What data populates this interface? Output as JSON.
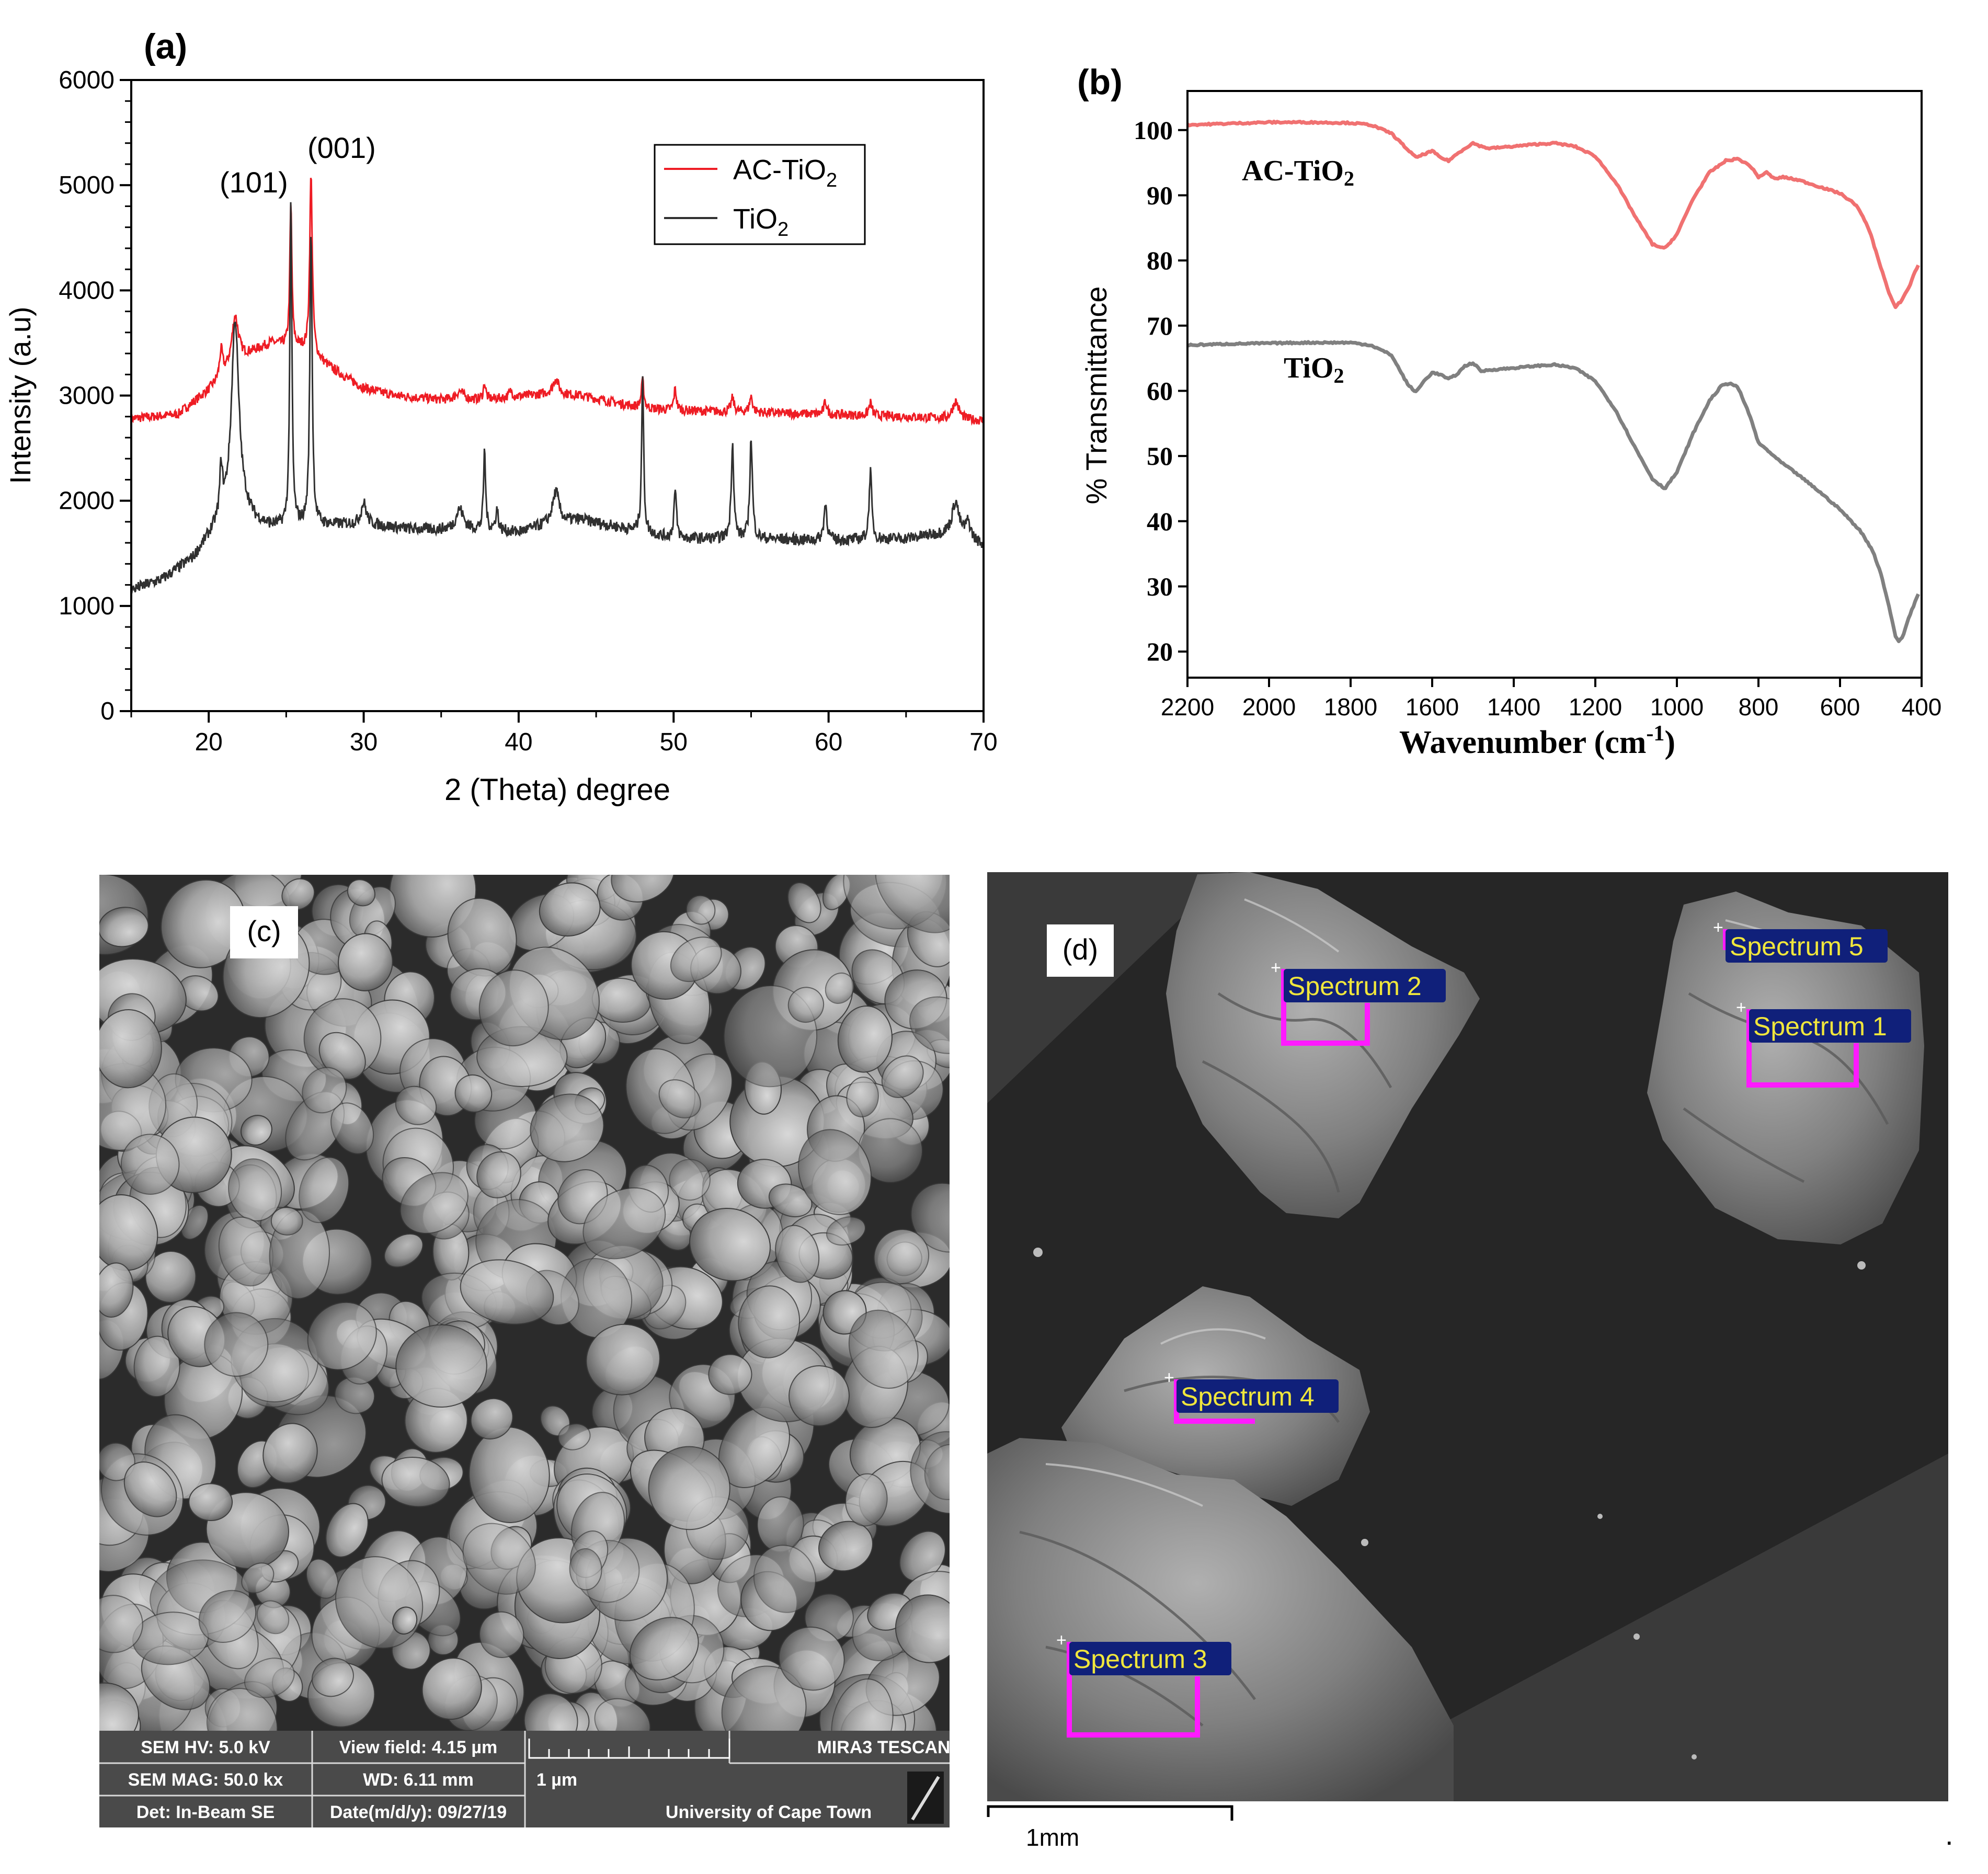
{
  "colors": {
    "ac_xrd": "#ee1c24",
    "tio2_xrd": "#303030",
    "ac_ftir": "#f07171",
    "tio2_ftir": "#808080",
    "spectrum_label_bg": "#10207a",
    "spectrum_label_text": "#f0e63c",
    "spectrum_box": "#ff1aff"
  },
  "panel_a": {
    "label": "(a)",
    "peak_labels": [
      "(101)",
      "(001)"
    ],
    "chart_data": {
      "type": "line",
      "title": "",
      "xlabel": "2 (Theta) degree",
      "ylabel": "Intensity (a.u)",
      "xlim": [
        15,
        70
      ],
      "ylim": [
        0,
        6000
      ],
      "xticks": [
        "20",
        "30",
        "40",
        "50",
        "60",
        "70"
      ],
      "yticks": [
        "0",
        "1000",
        "2000",
        "3000",
        "4000",
        "5000",
        "6000"
      ],
      "legend_position": "top-right",
      "legend": [
        {
          "text": "AC-TiO",
          "sub": "2"
        },
        {
          "text": "TiO",
          "sub": "2"
        }
      ],
      "series": [
        {
          "name": "AC-TiO2",
          "baseline": [
            [
              15,
              2780
            ],
            [
              18,
              2820
            ],
            [
              20,
              3050
            ],
            [
              22,
              3350
            ],
            [
              24,
              3500
            ],
            [
              26,
              3450
            ],
            [
              28,
              3250
            ],
            [
              30,
              3070
            ],
            [
              32,
              3000
            ],
            [
              35,
              2960
            ],
            [
              38,
              2960
            ],
            [
              42,
              3020
            ],
            [
              44,
              3000
            ],
            [
              46,
              2940
            ],
            [
              48,
              2880
            ],
            [
              50,
              2860
            ],
            [
              55,
              2840
            ],
            [
              60,
              2820
            ],
            [
              65,
              2800
            ],
            [
              70,
              2760
            ]
          ],
          "peaks": [
            [
              20.8,
              250,
              0.12
            ],
            [
              21.7,
              450,
              0.25
            ],
            [
              25.3,
              1350,
              0.08
            ],
            [
              26.6,
              1700,
              0.1
            ],
            [
              36.2,
              80,
              0.3
            ],
            [
              37.8,
              150,
              0.1
            ],
            [
              39.5,
              60,
              0.15
            ],
            [
              42.4,
              150,
              0.2
            ],
            [
              48,
              260,
              0.1
            ],
            [
              50.1,
              200,
              0.1
            ],
            [
              53.8,
              130,
              0.12
            ],
            [
              55,
              150,
              0.12
            ],
            [
              59.8,
              120,
              0.12
            ],
            [
              62.7,
              120,
              0.12
            ],
            [
              68.2,
              170,
              0.25
            ]
          ]
        },
        {
          "name": "TiO2",
          "baseline": [
            [
              15,
              1150
            ],
            [
              17,
              1250
            ],
            [
              19,
              1450
            ],
            [
              20,
              1650
            ],
            [
              21,
              1850
            ],
            [
              22,
              1950
            ],
            [
              23,
              1800
            ],
            [
              24,
              1750
            ],
            [
              28,
              1770
            ],
            [
              30,
              1780
            ],
            [
              33,
              1730
            ],
            [
              36,
              1720
            ],
            [
              38,
              1720
            ],
            [
              40,
              1700
            ],
            [
              42,
              1780
            ],
            [
              44,
              1820
            ],
            [
              46,
              1760
            ],
            [
              48,
              1700
            ],
            [
              50,
              1640
            ],
            [
              55,
              1640
            ],
            [
              60,
              1620
            ],
            [
              65,
              1640
            ],
            [
              68,
              1700
            ],
            [
              70,
              1580
            ]
          ],
          "peaks": [
            [
              20.8,
              450,
              0.1
            ],
            [
              21.7,
              1800,
              0.28
            ],
            [
              25.3,
              3050,
              0.08
            ],
            [
              26.6,
              2800,
              0.09
            ],
            [
              30,
              200,
              0.2
            ],
            [
              36.2,
              200,
              0.3
            ],
            [
              37.8,
              750,
              0.08
            ],
            [
              38.6,
              200,
              0.1
            ],
            [
              42.4,
              300,
              0.25
            ],
            [
              48,
              1450,
              0.08
            ],
            [
              50.1,
              450,
              0.1
            ],
            [
              53.8,
              900,
              0.1
            ],
            [
              55,
              950,
              0.1
            ],
            [
              59.8,
              350,
              0.12
            ],
            [
              62.7,
              650,
              0.1
            ],
            [
              68.2,
              300,
              0.25
            ],
            [
              69,
              150,
              0.2
            ]
          ]
        }
      ]
    }
  },
  "panel_b": {
    "label": "(b)",
    "chart_data": {
      "type": "line",
      "title": "",
      "xlabel": "Wavenumber (cm",
      "xlabel_sup": "-1",
      "xlabel_end": ")",
      "ylabel": "% Transmittance",
      "xlim": [
        2200,
        400
      ],
      "x_reversed": true,
      "ylim": [
        16,
        106
      ],
      "xticks": [
        "2200",
        "2000",
        "1800",
        "1600",
        "1400",
        "1200",
        "1000",
        "800",
        "600",
        "400"
      ],
      "yticks": [
        "20",
        "30",
        "40",
        "50",
        "60",
        "70",
        "80",
        "90",
        "100"
      ],
      "series": [
        {
          "name": "AC-TiO2",
          "label_text": "AC-TiO",
          "label_sub": "2",
          "points": [
            [
              2200,
              100.8
            ],
            [
              2100,
              101
            ],
            [
              2000,
              101.2
            ],
            [
              1900,
              101.2
            ],
            [
              1800,
              101.1
            ],
            [
              1750,
              100.8
            ],
            [
              1700,
              99.5
            ],
            [
              1660,
              97
            ],
            [
              1640,
              95.8
            ],
            [
              1620,
              96.3
            ],
            [
              1600,
              96.8
            ],
            [
              1580,
              95.8
            ],
            [
              1560,
              95.3
            ],
            [
              1540,
              96.3
            ],
            [
              1520,
              97.2
            ],
            [
              1500,
              98
            ],
            [
              1480,
              97.5
            ],
            [
              1460,
              97.2
            ],
            [
              1400,
              97.5
            ],
            [
              1350,
              97.8
            ],
            [
              1300,
              98
            ],
            [
              1250,
              97.5
            ],
            [
              1200,
              96
            ],
            [
              1150,
              92
            ],
            [
              1100,
              86.5
            ],
            [
              1060,
              82.5
            ],
            [
              1030,
              81.8
            ],
            [
              1000,
              84
            ],
            [
              960,
              89.5
            ],
            [
              920,
              93.5
            ],
            [
              880,
              95.3
            ],
            [
              850,
              95.6
            ],
            [
              820,
              94.5
            ],
            [
              800,
              92.8
            ],
            [
              780,
              93.5
            ],
            [
              760,
              92.5
            ],
            [
              740,
              92.8
            ],
            [
              700,
              92.3
            ],
            [
              650,
              91.3
            ],
            [
              600,
              90.3
            ],
            [
              560,
              88.5
            ],
            [
              530,
              85
            ],
            [
              500,
              79
            ],
            [
              480,
              75
            ],
            [
              465,
              72.8
            ],
            [
              450,
              73.8
            ],
            [
              430,
              76
            ],
            [
              415,
              78.5
            ],
            [
              405,
              79.5
            ]
          ]
        },
        {
          "name": "TiO2",
          "label_text": "TiO",
          "label_sub": "2",
          "points": [
            [
              2200,
              67
            ],
            [
              2100,
              67.2
            ],
            [
              2000,
              67.3
            ],
            [
              1900,
              67.4
            ],
            [
              1800,
              67.4
            ],
            [
              1750,
              67
            ],
            [
              1700,
              65.5
            ],
            [
              1660,
              61
            ],
            [
              1640,
              59.8
            ],
            [
              1620,
              61.5
            ],
            [
              1600,
              62.8
            ],
            [
              1580,
              62.5
            ],
            [
              1560,
              61.8
            ],
            [
              1540,
              62.5
            ],
            [
              1520,
              63.8
            ],
            [
              1500,
              64.3
            ],
            [
              1480,
              63
            ],
            [
              1460,
              63.2
            ],
            [
              1400,
              63.5
            ],
            [
              1350,
              63.8
            ],
            [
              1300,
              64
            ],
            [
              1250,
              63.5
            ],
            [
              1200,
              61.5
            ],
            [
              1150,
              57
            ],
            [
              1100,
              51
            ],
            [
              1060,
              46.5
            ],
            [
              1030,
              45
            ],
            [
              1000,
              47.5
            ],
            [
              960,
              53.5
            ],
            [
              920,
              58.5
            ],
            [
              890,
              60.8
            ],
            [
              870,
              61.2
            ],
            [
              850,
              60.5
            ],
            [
              820,
              56
            ],
            [
              800,
              52
            ],
            [
              780,
              51
            ],
            [
              750,
              49.3
            ],
            [
              700,
              47
            ],
            [
              650,
              44.5
            ],
            [
              600,
              41.8
            ],
            [
              550,
              38.5
            ],
            [
              520,
              35.5
            ],
            [
              500,
              32
            ],
            [
              480,
              27
            ],
            [
              465,
              22.5
            ],
            [
              455,
              21.5
            ],
            [
              445,
              22.5
            ],
            [
              430,
              25.5
            ],
            [
              410,
              28.5
            ],
            [
              405,
              29.2
            ]
          ]
        }
      ]
    }
  },
  "panel_c": {
    "label": "(c)",
    "info": {
      "hv": "SEM HV: 5.0 kV",
      "view_field": "View field: 4.15 µm",
      "brand": "MIRA3 TESCAN",
      "mag": "SEM MAG: 50.0 kx",
      "wd": "WD: 6.11 mm",
      "scale": "1 µm",
      "det": "Det: In-Beam SE",
      "date": "Date(m/d/y): 09/27/19",
      "institution": "University of Cape Town"
    }
  },
  "panel_d": {
    "label": "(d)",
    "spectra": [
      "Spectrum 2",
      "Spectrum 5",
      "Spectrum 1",
      "Spectrum 4",
      "Spectrum 3"
    ],
    "scale_label": "1mm"
  },
  "trailing_mark": "."
}
